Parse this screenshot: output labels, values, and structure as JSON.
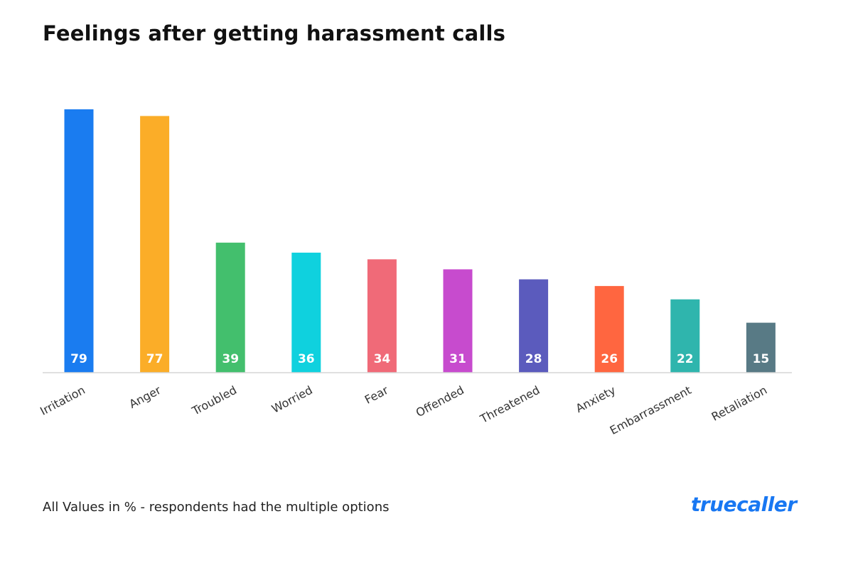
{
  "chart_data": {
    "type": "bar",
    "title": "Feelings after getting harassment calls",
    "categories": [
      "Irritation",
      "Anger",
      "Troubled",
      "Worried",
      "Fear",
      "Offended",
      "Threatened",
      "Anxiety",
      "Embarrassment",
      "Retaliation"
    ],
    "values": [
      79,
      77,
      39,
      36,
      34,
      31,
      28,
      26,
      22,
      15
    ],
    "colors": [
      "#1a7cf0",
      "#fbad28",
      "#43bf6d",
      "#0fd1de",
      "#f06a78",
      "#c74bce",
      "#5b5bbd",
      "#ff6640",
      "#2fb5ad",
      "#587a85"
    ],
    "xlabel": "",
    "ylabel": "",
    "ylim": [
      0,
      79
    ],
    "grid": false,
    "legend": "none",
    "data_labels": "inside-bottom"
  },
  "footnote": "All Values in % - respondents had the multiple options",
  "brand": "truecaller"
}
